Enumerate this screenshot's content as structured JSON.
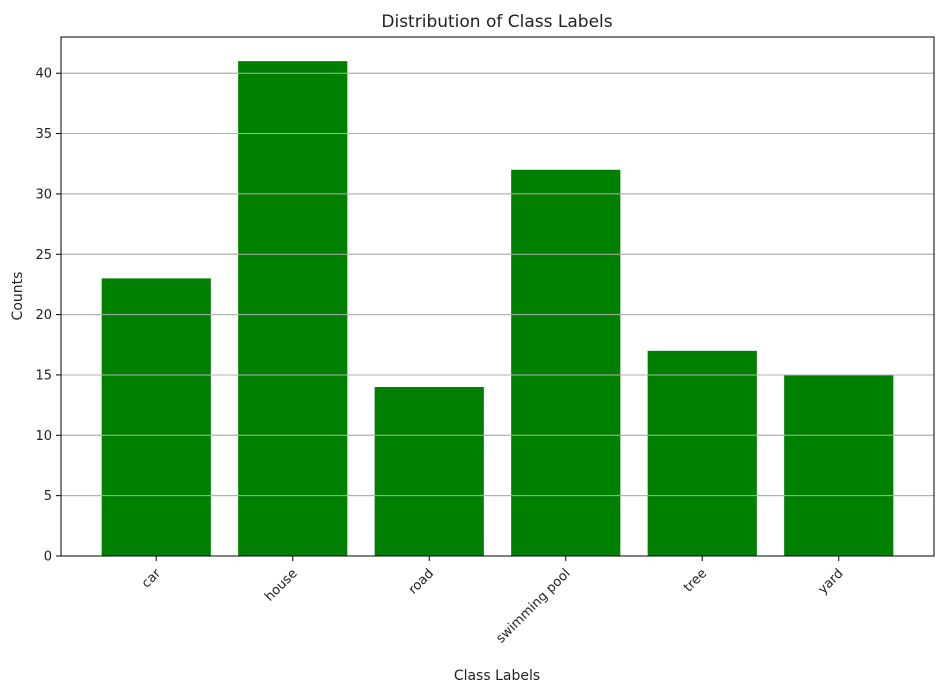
{
  "chart_data": {
    "type": "bar",
    "title": "Distribution of Class Labels",
    "xlabel": "Class Labels",
    "ylabel": "Counts",
    "categories": [
      "car",
      "house",
      "road",
      "swimming pool",
      "tree",
      "yard"
    ],
    "values": [
      23,
      41,
      14,
      32,
      17,
      15
    ],
    "ylim": [
      0,
      43
    ],
    "yticks": [
      0,
      5,
      10,
      15,
      20,
      25,
      30,
      35,
      40
    ],
    "ytick_labels": [
      "0",
      "5",
      "10",
      "15",
      "20",
      "25",
      "30",
      "35",
      "40"
    ],
    "grid": "y",
    "bar_color": "#008000",
    "grid_color": "#b0b0b0",
    "xtick_rotation": "45 degrees",
    "legend": "none"
  }
}
